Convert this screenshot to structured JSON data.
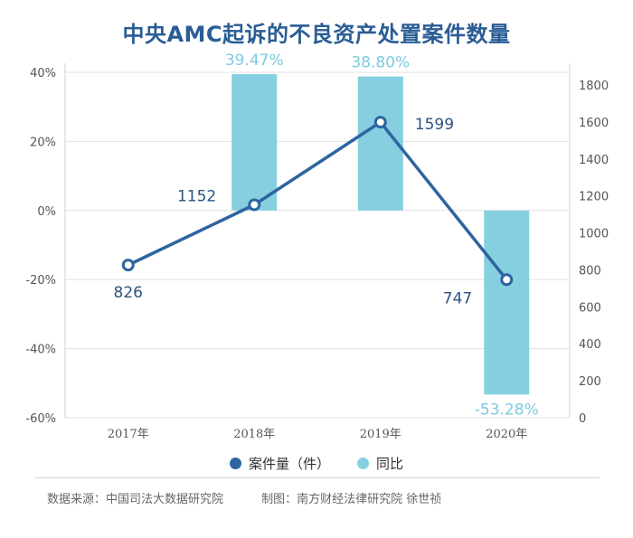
{
  "title": "中央AMC起诉的不良资产处置案件数量",
  "legend": {
    "count_label": "案件量（件）",
    "yoy_label": "同比"
  },
  "footer": {
    "source": "数据来源：中国司法大数据研究院",
    "credit": "制图：南方财经法律研究院 徐世祯"
  },
  "colors": {
    "line": "#2e64a0",
    "bar": "#86cfe0",
    "bar_label": "#7ccbe0",
    "title": "#2a5d95"
  },
  "chart_data": {
    "type": "bar+line",
    "title": "中央AMC起诉的不良资产处置案件数量",
    "categories": [
      "2017年",
      "2018年",
      "2019年",
      "2020年"
    ],
    "series": [
      {
        "name": "案件量（件）",
        "type": "line",
        "axis": "right",
        "values": [
          826,
          1152,
          1599,
          747
        ],
        "labels": [
          "826",
          "1152",
          "1599",
          "747"
        ]
      },
      {
        "name": "同比",
        "type": "bar",
        "axis": "left",
        "values": [
          null,
          39.47,
          38.8,
          -53.28
        ],
        "labels": [
          "",
          "39.47%",
          "38.80%",
          "-53.28%"
        ]
      }
    ],
    "left_axis": {
      "ylim": [
        -60,
        40
      ],
      "ticks": [
        -60,
        -40,
        -20,
        0,
        20,
        40
      ],
      "tick_labels": [
        "-60%",
        "-40%",
        "-20%",
        "0%",
        "20%",
        "40%"
      ]
    },
    "right_axis": {
      "ylim": [
        0,
        1800
      ],
      "ticks": [
        0,
        200,
        400,
        600,
        800,
        1000,
        1200,
        1400,
        1600,
        1800
      ],
      "tick_labels": [
        "0",
        "200",
        "400",
        "600",
        "800",
        "1000",
        "1200",
        "1400",
        "1600",
        "1800"
      ]
    },
    "grid": true,
    "legend_position": "bottom"
  }
}
